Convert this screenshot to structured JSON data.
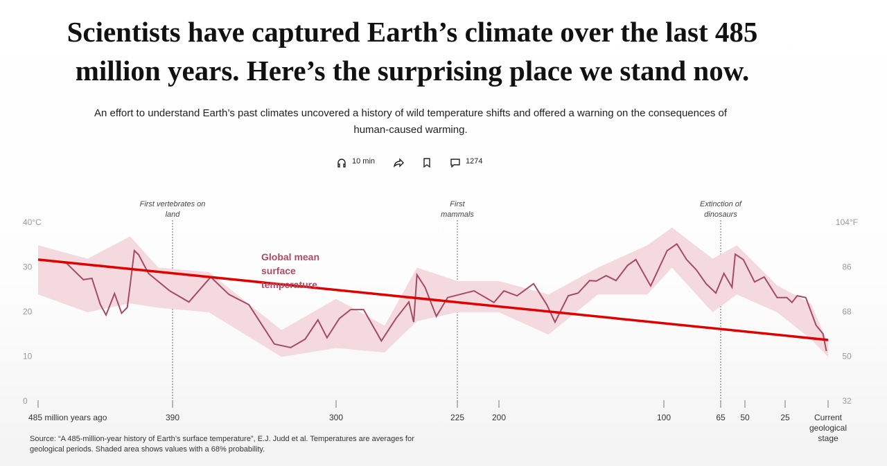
{
  "header": {
    "title": "Scientists have captured Earth’s climate over the last 485 million years. Here’s the surprising place we stand now.",
    "subtitle": "An effort to understand Earth’s past climates uncovered a history of wild temperature shifts and offered a warning on the consequences of human-caused warming.",
    "listen_time": "10 min",
    "comments": "1274"
  },
  "chart_data": {
    "type": "line",
    "xlim": [
      485,
      0
    ],
    "xticks": [
      {
        "value": 485,
        "label": "485 million years ago"
      },
      390,
      300,
      225,
      200,
      100,
      65,
      50,
      25,
      {
        "value": 0,
        "label": "Current geological stage"
      }
    ],
    "ylim": [
      0,
      40
    ],
    "yticks": [
      {
        "value": 0,
        "label": "0"
      },
      10,
      20,
      30,
      {
        "value": 40,
        "label": "40°C"
      }
    ],
    "y2lim": [
      32,
      104
    ],
    "y2ticks": [
      32,
      50,
      68,
      86,
      {
        "value": 104,
        "label": "104°F"
      }
    ],
    "series": [
      {
        "name": "Global mean surface temperature",
        "color": "#a44a62",
        "x": [
          485,
          465,
          453,
          447,
          441,
          437,
          431,
          426,
          422,
          420,
          417,
          414,
          407,
          392,
          381,
          369,
          359,
          348,
          334,
          325,
          317,
          310,
          305,
          298,
          291,
          283,
          272,
          263,
          255,
          252,
          250,
          245,
          238,
          231,
          215,
          203,
          197,
          189,
          179,
          171,
          166,
          158,
          152,
          145,
          141,
          135,
          129,
          122,
          117,
          108,
          98,
          92,
          86,
          80,
          74,
          68,
          63,
          58,
          56,
          51,
          44,
          38,
          30,
          24,
          21,
          18,
          13,
          7,
          3,
          1
        ],
        "values": [
          31.8,
          31.0,
          27.3,
          27.6,
          21.7,
          19.4,
          24.2,
          19.8,
          21.1,
          26.0,
          33.8,
          32.9,
          28.7,
          24.8,
          22.3,
          27.9,
          24.0,
          21.7,
          12.9,
          12.1,
          14.0,
          18.3,
          14.3,
          18.6,
          20.6,
          20.6,
          13.6,
          18.6,
          22.3,
          17.8,
          28.4,
          25.6,
          19.1,
          23.3,
          24.8,
          22.2,
          24.8,
          23.7,
          26.4,
          21.7,
          17.8,
          23.7,
          24.3,
          27.1,
          27.0,
          28.2,
          27.1,
          30.5,
          31.8,
          25.9,
          33.8,
          35.3,
          31.8,
          29.5,
          26.4,
          24.3,
          28.7,
          25.6,
          33.0,
          31.8,
          26.8,
          27.9,
          23.3,
          23.3,
          22.2,
          23.7,
          23.3,
          17.1,
          15.2,
          11.3
        ]
      }
    ],
    "band": {
      "color": "#f4d9df",
      "x": [
        485,
        450,
        420,
        400,
        370,
        330,
        300,
        270,
        250,
        225,
        200,
        170,
        140,
        110,
        95,
        70,
        55,
        30,
        10,
        0
      ],
      "upper": [
        35,
        32,
        37,
        30,
        29,
        16,
        23,
        17,
        30,
        27,
        27,
        24,
        30,
        35,
        39,
        32,
        35,
        26,
        22,
        13
      ],
      "lower": [
        24,
        20,
        22,
        21,
        20,
        10,
        12,
        11,
        18,
        20,
        20,
        15,
        24,
        24,
        30,
        20,
        24,
        20,
        14,
        10
      ]
    },
    "trend_line": {
      "color": "#e00000",
      "x": [
        485,
        0
      ],
      "values": [
        31.8,
        13.8
      ]
    },
    "annotations": [
      {
        "x": 390,
        "text": "First vertebrates on land"
      },
      {
        "x": 225,
        "text": "First mammals"
      },
      {
        "x": 65,
        "text": "Extinction of dinosaurs"
      }
    ]
  },
  "source": "Source: “A 485-million-year history of Earth’s surface temperature”, E.J. Judd et al. Temperatures are averages for geological periods. Shaded area shows values with a 68% probability."
}
